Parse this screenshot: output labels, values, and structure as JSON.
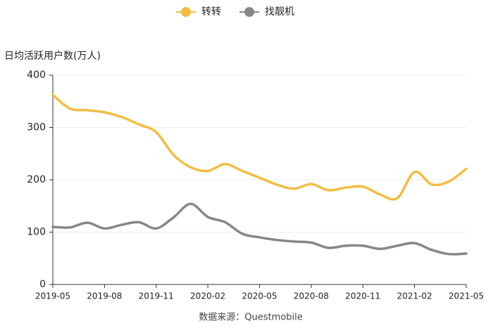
{
  "chart_data": {
    "type": "line",
    "y_label": "日均活跃用户数(万人)",
    "source": "数据来源：Questmobile",
    "categories": [
      "2019-05",
      null,
      null,
      "2019-08",
      null,
      null,
      "2019-11",
      null,
      null,
      "2020-02",
      null,
      null,
      "2020-05",
      null,
      null,
      "2020-08",
      null,
      null,
      "2020-11",
      null,
      null,
      "2021-02",
      null,
      null,
      "2021-05"
    ],
    "series": [
      {
        "name": "转转",
        "color": "#f0bd45",
        "values": [
          362,
          336,
          333,
          329,
          320,
          306,
          291,
          248,
          224,
          217,
          230,
          217,
          204,
          191,
          183,
          192,
          180,
          185,
          187,
          172,
          165,
          215,
          191,
          197,
          221
        ]
      },
      {
        "name": "找靓机",
        "color": "#878787",
        "values": [
          110,
          109,
          118,
          107,
          114,
          119,
          107,
          128,
          154,
          129,
          119,
          97,
          90,
          85,
          82,
          80,
          70,
          74,
          74,
          68,
          74,
          79,
          66,
          58,
          59
        ]
      }
    ],
    "ylim": [
      0,
      400
    ],
    "yticks": [
      0,
      100,
      200,
      300,
      400
    ],
    "grid": true,
    "legend": "top"
  }
}
